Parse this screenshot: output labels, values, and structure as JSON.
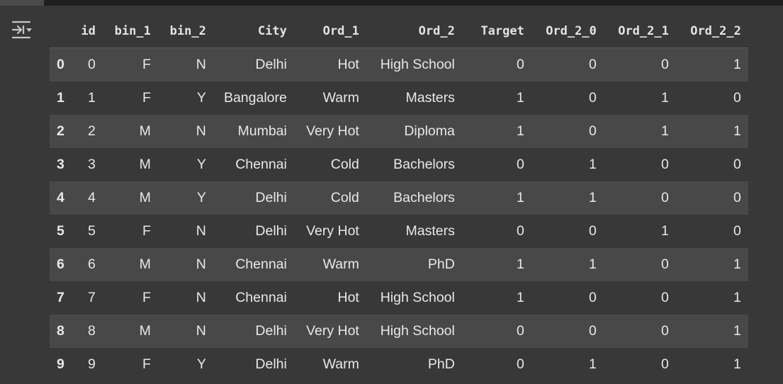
{
  "output_toolbar": {
    "icon": "output-options-icon"
  },
  "table": {
    "columns": [
      "",
      "id",
      "bin_1",
      "bin_2",
      "City",
      "Ord_1",
      "Ord_2",
      "Target",
      "Ord_2_0",
      "Ord_2_1",
      "Ord_2_2"
    ],
    "rows": [
      [
        "0",
        "0",
        "F",
        "N",
        "Delhi",
        "Hot",
        "High School",
        "0",
        "0",
        "0",
        "1"
      ],
      [
        "1",
        "1",
        "F",
        "Y",
        "Bangalore",
        "Warm",
        "Masters",
        "1",
        "0",
        "1",
        "0"
      ],
      [
        "2",
        "2",
        "M",
        "N",
        "Mumbai",
        "Very Hot",
        "Diploma",
        "1",
        "0",
        "1",
        "1"
      ],
      [
        "3",
        "3",
        "M",
        "Y",
        "Chennai",
        "Cold",
        "Bachelors",
        "0",
        "1",
        "0",
        "0"
      ],
      [
        "4",
        "4",
        "M",
        "Y",
        "Delhi",
        "Cold",
        "Bachelors",
        "1",
        "1",
        "0",
        "0"
      ],
      [
        "5",
        "5",
        "F",
        "N",
        "Delhi",
        "Very Hot",
        "Masters",
        "0",
        "0",
        "1",
        "0"
      ],
      [
        "6",
        "6",
        "M",
        "N",
        "Chennai",
        "Warm",
        "PhD",
        "1",
        "1",
        "0",
        "1"
      ],
      [
        "7",
        "7",
        "F",
        "N",
        "Chennai",
        "Hot",
        "High School",
        "1",
        "0",
        "0",
        "1"
      ],
      [
        "8",
        "8",
        "M",
        "N",
        "Delhi",
        "Very Hot",
        "High School",
        "0",
        "0",
        "0",
        "1"
      ],
      [
        "9",
        "9",
        "F",
        "Y",
        "Delhi",
        "Warm",
        "PhD",
        "0",
        "1",
        "0",
        "1"
      ]
    ]
  }
}
